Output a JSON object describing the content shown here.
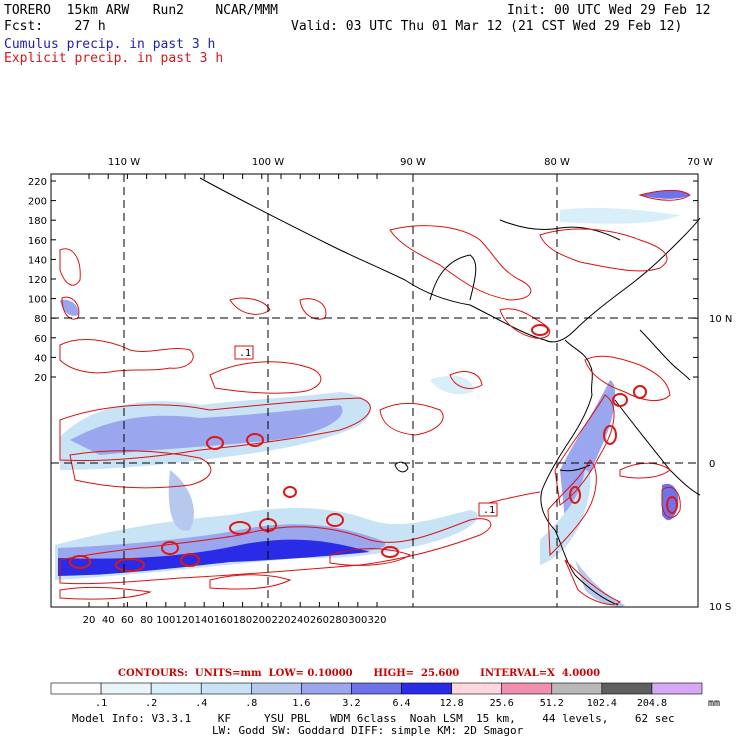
{
  "header": {
    "model": "TORERO  15km ARW   Run2    NCAR/MMM",
    "init": "Init: 00 UTC Wed 29 Feb 12",
    "fcst": "Fcst:    27 h",
    "valid": "Valid: 03 UTC Thu 01 Mar 12 (21 CST Wed 29 Feb 12)",
    "cumulus": "Cumulus precip. in past 3 h",
    "explicit": "Explicit precip. in past 3 h"
  },
  "axes": {
    "top_lon_labels": [
      "110 W",
      "100 W",
      "90 W",
      "80 W",
      "70 W"
    ],
    "right_lat_labels": [
      "10 N",
      "0",
      "10 S"
    ],
    "y_ticks": [
      "220",
      "200",
      "180",
      "160",
      "140",
      "120",
      "100",
      "80",
      "60",
      "40",
      "20"
    ],
    "x_ticks": [
      "20",
      "40",
      "60",
      "80",
      "100",
      "120",
      "140",
      "160",
      "180",
      "200",
      "220",
      "240",
      "260",
      "280",
      "300",
      "320"
    ]
  },
  "map_labels": {
    "label_a": ".1",
    "label_b": ".1"
  },
  "contours": "CONTOURS:  UNITS=mm  LOW= 0.10000      HIGH=  25.600      INTERVAL=X  4.0000",
  "colorbar": {
    "labels": [
      ".1",
      ".2",
      ".4",
      ".8",
      "1.6",
      "3.2",
      "6.4",
      "12.8",
      "25.6",
      "51.2",
      "102.4",
      "204.8"
    ],
    "unit": "mm",
    "colors": [
      "#ffffff",
      "#eaf5fb",
      "#d8eef8",
      "#c8e3f5",
      "#b7c8ef",
      "#9aa6ee",
      "#6f73ea",
      "#2a2be6",
      "#ffd7dc",
      "#f08fb0",
      "#b9b9b9",
      "#5f5f5f",
      "#d5a9f5"
    ]
  },
  "footer": {
    "line1": "Model Info: V3.3.1    KF     YSU PBL   WDM 6class  Noah LSM  15 km,    44 levels,    62 sec",
    "line2": "LW: Godd SW: Goddard DIFF: simple KM: 2D Smagor"
  }
}
